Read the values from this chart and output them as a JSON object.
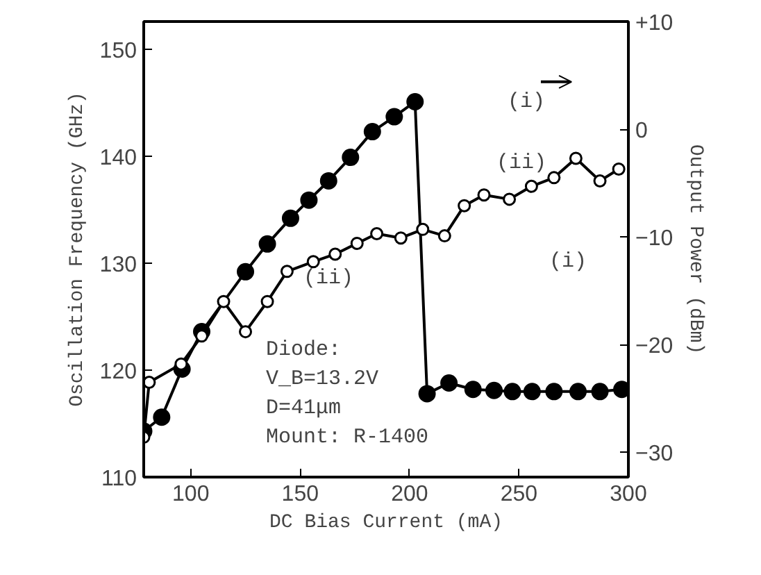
{
  "chart_data": {
    "type": "line",
    "xlabel": "DC Bias Current (mA)",
    "ylabel": "Oscillation Frequency (GHz)",
    "y2label": "Output Power (dBm)",
    "xlim": [
      78.5,
      300
    ],
    "xticks": [
      100,
      150,
      200,
      250,
      300
    ],
    "ylim": [
      110,
      152.6
    ],
    "yticks": [
      110,
      120,
      130,
      140,
      150
    ],
    "y2lim": [
      -32.3,
      10
    ],
    "y2ticks": [
      {
        "value": 10,
        "label": "+10"
      },
      0,
      -10,
      -20,
      -30
    ],
    "marker": "circle",
    "grid": false,
    "series": [
      {
        "color": "#000000",
        "x": [
          78.5,
          86.7,
          96,
          105,
          125,
          135,
          145.6,
          154,
          163,
          173,
          183,
          193,
          202.5,
          208,
          218,
          229,
          238.6,
          247,
          256,
          266,
          277,
          287,
          297
        ],
        "values": [
          114.3,
          115.6,
          120.1,
          123.6,
          129.2,
          131.8,
          134.2,
          135.9,
          137.7,
          139.9,
          142.3,
          143.7,
          145.1,
          117.8,
          118.8,
          118.2,
          118.1,
          118,
          118,
          118,
          118,
          118,
          118.2
        ]
      },
      {
        "color": "#000000",
        "axis": "y2",
        "x": [
          78.5,
          81,
          95.6,
          105,
          115,
          125,
          135,
          144,
          156,
          166,
          176,
          185,
          196,
          206,
          216,
          225,
          234,
          245.6,
          255.7,
          266,
          276,
          287,
          295.6
        ],
        "values": [
          -28.6,
          -23.5,
          -21.8,
          -19.2,
          -16,
          -18.8,
          -16,
          -13.2,
          -12.3,
          -11.6,
          -10.6,
          -9.7,
          -10.1,
          -9.3,
          -9.9,
          -7.1,
          -6.1,
          -6.5,
          -5.3,
          -4.5,
          -2.7,
          -4.8,
          -3.7
        ]
      }
    ],
    "annotations": [
      "(i)",
      "(ii)",
      "(ii)",
      "(i)",
      "Diode:",
      "V_B=13.2V",
      "D=41μm",
      "Mount: R-1400"
    ]
  }
}
